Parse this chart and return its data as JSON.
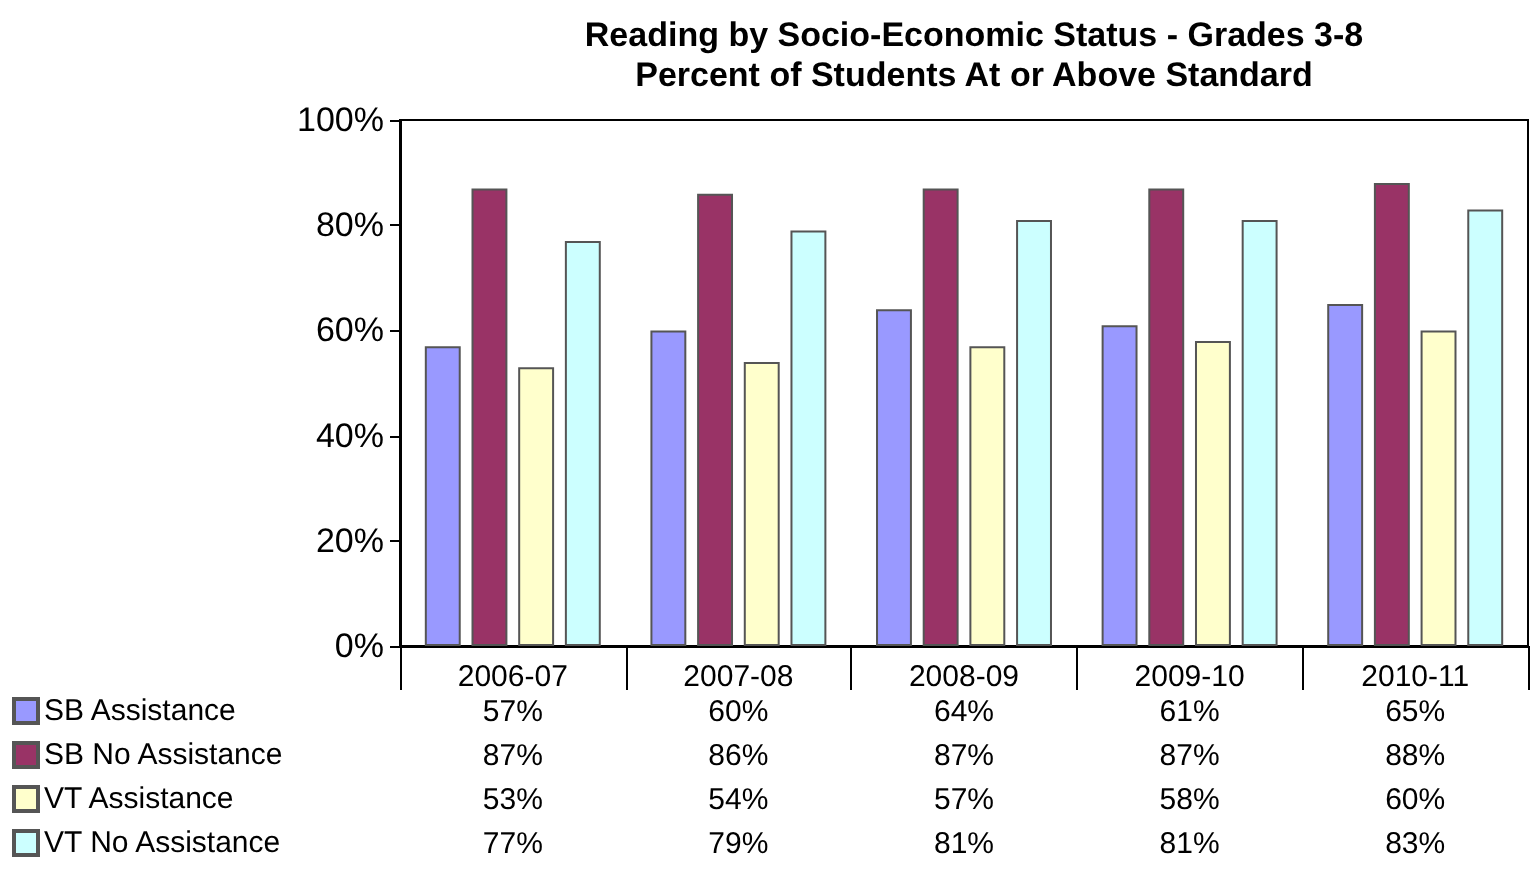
{
  "chart_data": {
    "type": "bar",
    "title": "Reading by Socio-Economic Status - Grades 3-8",
    "subtitle": "Percent of Students At or Above Standard",
    "categories": [
      "2006-07",
      "2007-08",
      "2008-09",
      "2009-10",
      "2010-11"
    ],
    "series": [
      {
        "name": "SB Assistance",
        "color": "#9999ff",
        "values": [
          57,
          60,
          64,
          61,
          65
        ],
        "value_labels": [
          "57%",
          "60%",
          "64%",
          "61%",
          "65%"
        ]
      },
      {
        "name": "SB No Assistance",
        "color": "#993366",
        "values": [
          87,
          86,
          87,
          87,
          88
        ],
        "value_labels": [
          "87%",
          "86%",
          "87%",
          "87%",
          "88%"
        ]
      },
      {
        "name": "VT Assistance",
        "color": "#ffffcc",
        "values": [
          53,
          54,
          57,
          58,
          60
        ],
        "value_labels": [
          "53%",
          "54%",
          "57%",
          "58%",
          "60%"
        ]
      },
      {
        "name": "VT No Assistance",
        "color": "#ccffff",
        "values": [
          77,
          79,
          81,
          81,
          83
        ],
        "value_labels": [
          "77%",
          "79%",
          "81%",
          "81%",
          "83%"
        ]
      }
    ],
    "ylim": [
      0,
      100
    ],
    "yticks": [
      {
        "value": 0,
        "label": "0%"
      },
      {
        "value": 20,
        "label": "20%"
      },
      {
        "value": 40,
        "label": "40%"
      },
      {
        "value": 60,
        "label": "60%"
      },
      {
        "value": 80,
        "label": "80%"
      },
      {
        "value": 100,
        "label": "100%"
      }
    ],
    "grid": false,
    "legend": "bottom left"
  }
}
